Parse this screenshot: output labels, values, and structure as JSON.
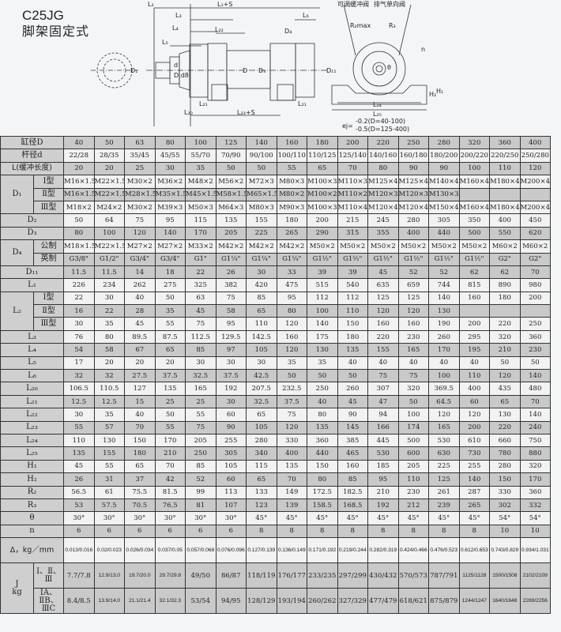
{
  "title": {
    "model": "C25JG",
    "mount": "脚架固定式"
  },
  "diagram": {
    "labels": {
      "L2": "L₂",
      "L1S": "L₁+S",
      "L3": "L₃",
      "L4": "L₄",
      "L5": "L₅",
      "L6": "L₆",
      "L22": "L₂₂",
      "D4": "D₄",
      "D1": "D₁",
      "d": "d",
      "Dd8": "D.d8",
      "D": "D",
      "D3": "D₃",
      "L21a": "L₂₁",
      "L21b": "L₂₁",
      "L20": "L₂₀",
      "L23S": "L₂₃+S",
      "valve1": "可调缓冲阀",
      "valve2": "排气单向阀",
      "R2max": "R₂max",
      "R3": "R₃",
      "n": "n",
      "D11": "D₁₁",
      "theta": "θ",
      "H1": "H₁",
      "H2": "H₂",
      "L24": "L₂₄",
      "L25": "L₂₅",
      "ej_prefix": "ej=",
      "ej1": "-0.2(D=40-100)",
      "ej2": "-0.5(D=125-400)"
    }
  },
  "table": {
    "header_label": "缸径D",
    "bores": [
      "40",
      "50",
      "63",
      "80",
      "100",
      "125",
      "140",
      "160",
      "180",
      "200",
      "220",
      "250",
      "280",
      "320",
      "360",
      "400"
    ],
    "rows": [
      {
        "label": "杆径d",
        "values": [
          "22/28",
          "28/35",
          "35/45",
          "45/55",
          "55/70",
          "70/90",
          "90/100",
          "100/110",
          "110/125",
          "125/140",
          "140/160",
          "160/180",
          "180/200",
          "200/220",
          "220/250",
          "250/280"
        ]
      },
      {
        "label": "L(缓冲长度)",
        "values": [
          "20",
          "20",
          "25",
          "30",
          "35",
          "50",
          "50",
          "55",
          "65",
          "70",
          "80",
          "90",
          "90",
          "100",
          "110",
          "120"
        ]
      },
      {
        "group": "D₁",
        "subrows": [
          {
            "label": "Ⅰ型",
            "values": [
              "M16×1.5",
              "M22×1.5",
              "M30×2",
              "M36×2",
              "M48×2",
              "M56×2",
              "M72×3",
              "M80×3",
              "M100×3",
              "M110×3",
              "M125×4",
              "M125×4",
              "M140×4",
              "M160×4",
              "M180×4",
              "M200×4"
            ]
          },
          {
            "label": "Ⅱ型",
            "values": [
              "M16×1.5",
              "M22×1.5",
              "M28×1.5",
              "M35×1.5",
              "M45×1.5",
              "M58×1.5",
              "M65×1.5",
              "M80×2",
              "M100×2",
              "M110×2",
              "M120×3",
              "M120×3",
              "M130×3",
              "",
              "",
              ""
            ]
          },
          {
            "label": "Ⅲ型",
            "values": [
              "M18×2",
              "M24×2",
              "M30×2",
              "M39×3",
              "M50×3",
              "M64×3",
              "M80×3",
              "M90×3",
              "M100×3",
              "M110×4",
              "M120×4",
              "M120×4",
              "M150×4",
              "M160×4",
              "M180×4",
              "M200×4"
            ]
          }
        ]
      },
      {
        "label": "D₂",
        "values": [
          "50",
          "64",
          "75",
          "95",
          "115",
          "135",
          "155",
          "180",
          "200",
          "215",
          "245",
          "280",
          "305",
          "350",
          "400",
          "450"
        ]
      },
      {
        "label": "D₃",
        "values": [
          "80",
          "100",
          "120",
          "140",
          "170",
          "205",
          "225",
          "265",
          "290",
          "315",
          "355",
          "400",
          "440",
          "500",
          "550",
          "620"
        ]
      },
      {
        "group": "D₄",
        "subrows": [
          {
            "label": "公制",
            "values": [
              "M18×1.5",
              "M22×1.5",
              "M27×2",
              "M27×2",
              "M33×2",
              "M42×2",
              "M42×2",
              "M42×2",
              "M50×2",
              "M50×2",
              "M50×2",
              "M50×2",
              "M50×2",
              "M50×2",
              "M60×2",
              "M60×2"
            ]
          },
          {
            "label": "英制",
            "values": [
              "G3/8\"",
              "G1/2\"",
              "G3/4\"",
              "G3/4\"",
              "G1\"",
              "G1¼\"",
              "G1¼\"",
              "G1¼\"",
              "G1½\"",
              "G1½\"",
              "G1½\"",
              "G1½\"",
              "G1½\"",
              "G1½\"",
              "G2\"",
              "G2\""
            ]
          }
        ]
      },
      {
        "label": "D₁₁",
        "values": [
          "11.5",
          "11.5",
          "14",
          "18",
          "22",
          "26",
          "30",
          "33",
          "39",
          "39",
          "45",
          "52",
          "52",
          "62",
          "62",
          "70"
        ]
      },
      {
        "label": "L₁",
        "values": [
          "226",
          "234",
          "262",
          "275",
          "325",
          "382",
          "420",
          "475",
          "515",
          "540",
          "635",
          "659",
          "744",
          "815",
          "890",
          "980"
        ]
      },
      {
        "group": "L₂",
        "subrows": [
          {
            "label": "Ⅰ型",
            "values": [
              "22",
              "30",
              "40",
              "50",
              "63",
              "75",
              "85",
              "95",
              "112",
              "112",
              "125",
              "125",
              "140",
              "160",
              "180",
              "200"
            ]
          },
          {
            "label": "Ⅱ型",
            "values": [
              "16",
              "22",
              "28",
              "35",
              "45",
              "58",
              "65",
              "80",
              "100",
              "110",
              "120",
              "120",
              "130",
              "",
              "",
              ""
            ]
          },
          {
            "label": "Ⅲ型",
            "values": [
              "30",
              "35",
              "45",
              "55",
              "75",
              "95",
              "110",
              "120",
              "140",
              "150",
              "160",
              "160",
              "190",
              "200",
              "220",
              "250"
            ]
          }
        ]
      },
      {
        "label": "L₃",
        "values": [
          "76",
          "80",
          "89.5",
          "87.5",
          "112.5",
          "129.5",
          "142.5",
          "160",
          "175",
          "180",
          "220",
          "230",
          "260",
          "295",
          "320",
          "360"
        ]
      },
      {
        "label": "L₄",
        "values": [
          "54",
          "58",
          "67",
          "65",
          "85",
          "97",
          "105",
          "120",
          "130",
          "135",
          "155",
          "165",
          "170",
          "195",
          "210",
          "230"
        ]
      },
      {
        "label": "L₅",
        "values": [
          "17",
          "20",
          "20",
          "20",
          "30",
          "30",
          "30",
          "35",
          "35",
          "40",
          "40",
          "40",
          "40",
          "40",
          "50",
          "50"
        ]
      },
      {
        "label": "L₆",
        "values": [
          "32",
          "32",
          "27.5",
          "37.5",
          "32.5",
          "37.5",
          "42.5",
          "50",
          "50",
          "50",
          "75",
          "75",
          "100",
          "110",
          "120",
          "140"
        ]
      },
      {
        "label": "L₂₀",
        "values": [
          "106.5",
          "110.5",
          "127",
          "135",
          "165",
          "192",
          "207.5",
          "232.5",
          "250",
          "260",
          "307",
          "320",
          "369.5",
          "400",
          "435",
          "480"
        ]
      },
      {
        "label": "L₂₁",
        "values": [
          "12.5",
          "12.5",
          "15",
          "25",
          "25",
          "30",
          "32.5",
          "37.5",
          "40",
          "45",
          "47",
          "50",
          "64.5",
          "60",
          "65",
          "70"
        ]
      },
      {
        "label": "L₂₂",
        "values": [
          "30",
          "35",
          "40",
          "50",
          "55",
          "60",
          "65",
          "75",
          "80",
          "90",
          "94",
          "100",
          "120",
          "120",
          "130",
          "140"
        ]
      },
      {
        "label": "L₂₃",
        "values": [
          "55",
          "57",
          "70",
          "55",
          "75",
          "90",
          "105",
          "120",
          "135",
          "145",
          "166",
          "174",
          "165",
          "200",
          "220",
          "240"
        ]
      },
      {
        "label": "L₂₄",
        "values": [
          "110",
          "130",
          "150",
          "170",
          "205",
          "255",
          "280",
          "330",
          "360",
          "385",
          "445",
          "500",
          "530",
          "610",
          "660",
          "750"
        ]
      },
      {
        "label": "L₂₅",
        "values": [
          "135",
          "155",
          "180",
          "210",
          "250",
          "305",
          "340",
          "400",
          "440",
          "465",
          "530",
          "600",
          "630",
          "730",
          "780",
          "880"
        ]
      },
      {
        "label": "H₁",
        "values": [
          "45",
          "55",
          "65",
          "70",
          "85",
          "105",
          "115",
          "135",
          "150",
          "160",
          "185",
          "205",
          "225",
          "255",
          "280",
          "320"
        ]
      },
      {
        "label": "H₂",
        "values": [
          "26",
          "31",
          "37",
          "42",
          "52",
          "60",
          "65",
          "70",
          "80",
          "85",
          "95",
          "110",
          "125",
          "140",
          "150",
          "170"
        ]
      },
      {
        "label": "R₂",
        "values": [
          "56.5",
          "61",
          "75.5",
          "81.5",
          "99",
          "113",
          "133",
          "149",
          "172.5",
          "182.5",
          "210",
          "230",
          "261",
          "287",
          "330",
          "360"
        ]
      },
      {
        "label": "R₃",
        "values": [
          "53",
          "57.5",
          "70.5",
          "76.5",
          "81",
          "107",
          "123",
          "139",
          "158.5",
          "168.5",
          "192",
          "212",
          "239",
          "265",
          "302",
          "332"
        ]
      },
      {
        "label": "θ",
        "values": [
          "30°",
          "30°",
          "30°",
          "30°",
          "30°",
          "30°",
          "45°",
          "45°",
          "45°",
          "45°",
          "45°",
          "45°",
          "45°",
          "45°",
          "54°",
          "54°"
        ]
      },
      {
        "label": "n",
        "values": [
          "6",
          "6",
          "6",
          "6",
          "6",
          "6",
          "8",
          "8",
          "8",
          "8",
          "8",
          "8",
          "8",
          "8",
          "10",
          "10"
        ]
      },
      {
        "label": "Δ，kg／mm",
        "tall": true,
        "values": [
          "0.013/0.016",
          "0.02/0.023",
          "0.026/0.034",
          "0.037/0.05",
          "0.057/0.068",
          "0.076/0.096",
          "0.127/0.139",
          "0.136/0.149",
          "0.171/0.192",
          "0.219/0.244",
          "0.282/0.319",
          "0.424/0.466",
          "0.476/0.523",
          "0.612/0.653",
          "0.743/0.829",
          "0.934/1.031"
        ]
      },
      {
        "group": "J\nkg",
        "tall": true,
        "subrows": [
          {
            "label": "Ⅰ、Ⅱ、\nⅢ",
            "values": [
              "7.7/7.8",
              "12.9/13.0",
              "19.7/20.0",
              "29.7/29.8",
              "49/50",
              "86/87",
              "118/119",
              "176/177",
              "233/235",
              "297/299",
              "430/432",
              "570/573",
              "787/791",
              "1125/1128",
              "1500/1508",
              "2102/2109"
            ]
          },
          {
            "label": "ⅠA、ⅡB、\nⅢC",
            "values": [
              "8.4/8.5",
              "13.9/14.0",
              "21.1/21.4",
              "32.1/32.3",
              "53/54",
              "94/95",
              "128/129",
              "193/194",
              "260/262",
              "327/329",
              "477/479",
              "618/621",
              "875/879",
              "1244/1247",
              "1640/1648",
              "2289/2256"
            ]
          }
        ]
      }
    ]
  }
}
